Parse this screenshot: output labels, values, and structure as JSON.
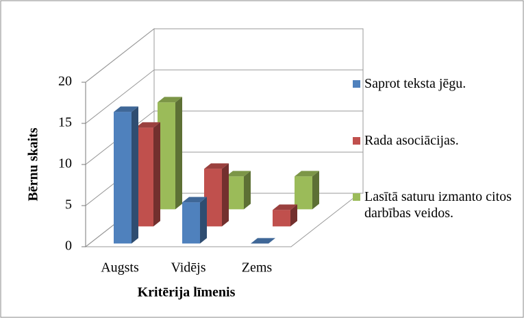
{
  "chart_data": {
    "type": "bar3d",
    "xlabel": "Kritērija līmenis",
    "ylabel": "Bērnu skaits",
    "categories": [
      "Augsts",
      "Vidējs",
      "Zems"
    ],
    "series": [
      {
        "name": "Saprot teksta jēgu.",
        "color": "#4f81bd",
        "values": [
          16,
          5,
          0
        ]
      },
      {
        "name": "Rada asociācijas.",
        "color": "#c0504d",
        "values": [
          12,
          7,
          2
        ]
      },
      {
        "name": "Lasītā saturu izmanto citos darbības veidos.",
        "color": "#9bbb59",
        "values": [
          13,
          4,
          4
        ]
      }
    ],
    "ylim": [
      0,
      20
    ],
    "yticks": [
      0,
      5,
      10,
      15,
      20
    ],
    "grid": true,
    "legend": "right"
  }
}
